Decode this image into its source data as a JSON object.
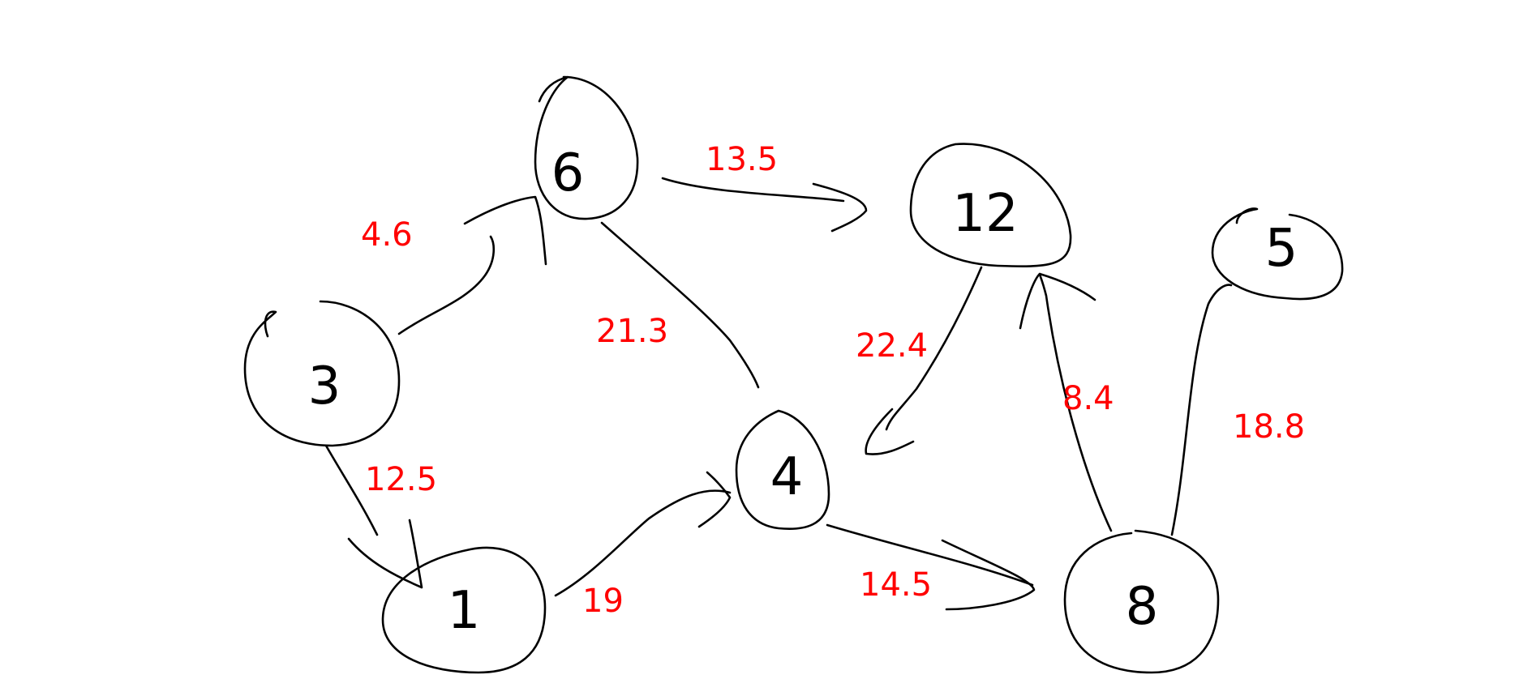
{
  "diagram": {
    "colors": {
      "stroke": "#000000",
      "weight_text": "#ff0000",
      "background": "#ffffff"
    },
    "nodes": [
      {
        "id": "6",
        "label": "6"
      },
      {
        "id": "3",
        "label": "3"
      },
      {
        "id": "1",
        "label": "1"
      },
      {
        "id": "4",
        "label": "4"
      },
      {
        "id": "12",
        "label": "12"
      },
      {
        "id": "5",
        "label": "5"
      },
      {
        "id": "8",
        "label": "8"
      }
    ],
    "edges": [
      {
        "from": "3",
        "to": "6",
        "weight": "4.6"
      },
      {
        "from": "6",
        "to": "12",
        "weight": "13.5"
      },
      {
        "from": "6",
        "to": "4",
        "weight": "21.3"
      },
      {
        "from": "3",
        "to": "1",
        "weight": "12.5"
      },
      {
        "from": "1",
        "to": "4",
        "weight": "19"
      },
      {
        "from": "4",
        "to": "8",
        "weight": "14.5"
      },
      {
        "from": "12",
        "to": "4",
        "weight": "22.4"
      },
      {
        "from": "8",
        "to": "12",
        "weight": "8.4"
      },
      {
        "from": "8",
        "to": "5",
        "weight": "18.8"
      }
    ]
  }
}
